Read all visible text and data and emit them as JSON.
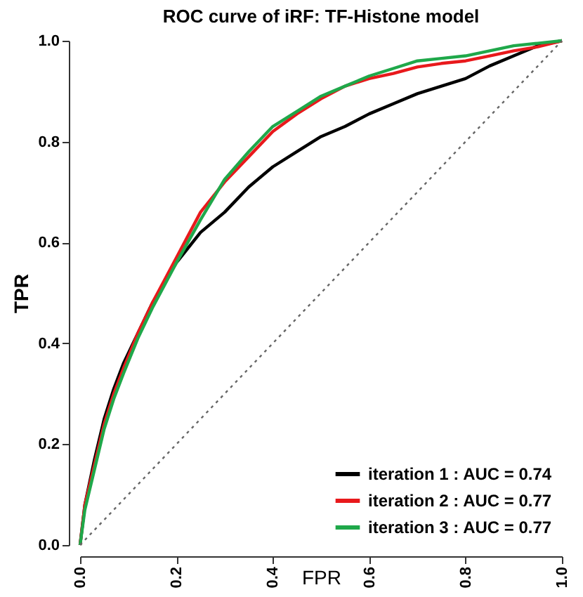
{
  "chart_data": {
    "type": "line",
    "title": "ROC curve of iRF: TF-Histone model",
    "xlabel": "FPR",
    "ylabel": "TPR",
    "xlim": [
      0,
      1
    ],
    "ylim": [
      0,
      1
    ],
    "xticks": [
      {
        "value": 0,
        "label": "0.0"
      },
      0.2,
      0.4,
      0.6,
      0.8,
      {
        "value": 1,
        "label": "1.0"
      }
    ],
    "yticks": [
      {
        "value": 0,
        "label": "0.0"
      },
      0.2,
      0.4,
      0.6,
      0.8,
      {
        "value": 1,
        "label": "1.0"
      }
    ],
    "grid": false,
    "legend": "bottom right",
    "marker": "none",
    "series": [
      {
        "name": "iteration 1 : AUC = 0.74",
        "color": "#000000",
        "x": [
          0,
          0.01,
          0.03,
          0.05,
          0.07,
          0.09,
          0.12,
          0.15,
          0.2,
          0.25,
          0.3,
          0.35,
          0.4,
          0.45,
          0.5,
          0.55,
          0.6,
          0.65,
          0.7,
          0.75,
          0.8,
          0.85,
          0.9,
          0.95,
          1
        ],
        "values": [
          0,
          0.08,
          0.17,
          0.25,
          0.31,
          0.36,
          0.42,
          0.48,
          0.56,
          0.62,
          0.66,
          0.71,
          0.75,
          0.78,
          0.81,
          0.83,
          0.855,
          0.875,
          0.895,
          0.91,
          0.925,
          0.95,
          0.97,
          0.99,
          1
        ]
      },
      {
        "name": "iteration 2 : AUC = 0.77",
        "color": "#e8191c",
        "x": [
          0,
          0.01,
          0.03,
          0.05,
          0.07,
          0.09,
          0.12,
          0.15,
          0.2,
          0.25,
          0.3,
          0.35,
          0.4,
          0.45,
          0.5,
          0.55,
          0.6,
          0.65,
          0.7,
          0.75,
          0.8,
          0.85,
          0.9,
          0.95,
          1
        ],
        "values": [
          0,
          0.08,
          0.16,
          0.24,
          0.3,
          0.35,
          0.42,
          0.48,
          0.57,
          0.66,
          0.72,
          0.77,
          0.82,
          0.855,
          0.885,
          0.91,
          0.925,
          0.935,
          0.948,
          0.955,
          0.96,
          0.97,
          0.98,
          0.988,
          1
        ]
      },
      {
        "name": "iteration 3 : AUC = 0.77",
        "color": "#1fa84a",
        "x": [
          0,
          0.01,
          0.03,
          0.05,
          0.07,
          0.09,
          0.12,
          0.15,
          0.2,
          0.25,
          0.3,
          0.35,
          0.4,
          0.45,
          0.5,
          0.55,
          0.6,
          0.65,
          0.7,
          0.75,
          0.8,
          0.85,
          0.9,
          0.95,
          1
        ],
        "values": [
          0,
          0.07,
          0.15,
          0.23,
          0.29,
          0.34,
          0.41,
          0.47,
          0.56,
          0.645,
          0.725,
          0.78,
          0.83,
          0.86,
          0.89,
          0.91,
          0.93,
          0.945,
          0.96,
          0.965,
          0.97,
          0.98,
          0.99,
          0.995,
          1
        ]
      },
      {
        "color": "#666666",
        "line_style": "dotted",
        "x": [
          0,
          1
        ],
        "values": [
          0,
          1
        ]
      }
    ]
  }
}
